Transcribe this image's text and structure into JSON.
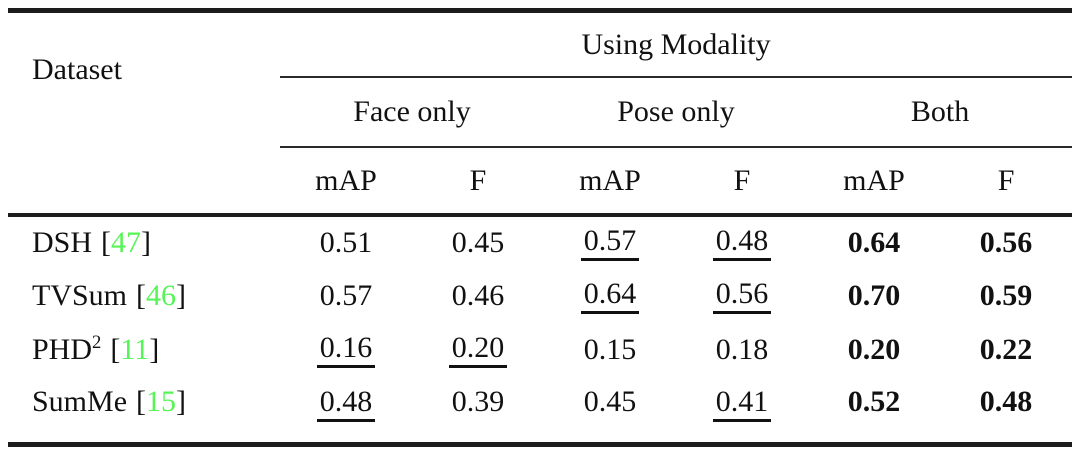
{
  "table": {
    "corner_header": "Dataset",
    "span_header": "Using Modality",
    "group_headers": [
      "Face only",
      "Pose only",
      "Both"
    ],
    "metric_headers": [
      "mAP",
      "F",
      "mAP",
      "F",
      "mAP",
      "F"
    ],
    "cite_open": "[",
    "cite_close": "]",
    "citation_color": "#57f457",
    "text_color": "#111111",
    "rows": [
      {
        "name": "DSH",
        "sup": "",
        "cite": "47",
        "values": [
          {
            "v": "0.51"
          },
          {
            "v": "0.45"
          },
          {
            "v": "0.57",
            "u": true
          },
          {
            "v": "0.48",
            "u": true
          },
          {
            "v": "0.64",
            "b": true
          },
          {
            "v": "0.56",
            "b": true
          }
        ]
      },
      {
        "name": "TVSum",
        "sup": "",
        "cite": "46",
        "values": [
          {
            "v": "0.57"
          },
          {
            "v": "0.46"
          },
          {
            "v": "0.64",
            "u": true
          },
          {
            "v": "0.56",
            "u": true
          },
          {
            "v": "0.70",
            "b": true
          },
          {
            "v": "0.59",
            "b": true
          }
        ]
      },
      {
        "name": "PHD",
        "sup": "2",
        "cite": "11",
        "values": [
          {
            "v": "0.16",
            "u": true
          },
          {
            "v": "0.20",
            "u": true
          },
          {
            "v": "0.15"
          },
          {
            "v": "0.18"
          },
          {
            "v": "0.20",
            "b": true
          },
          {
            "v": "0.22",
            "b": true
          }
        ]
      },
      {
        "name": "SumMe",
        "sup": "",
        "cite": "15",
        "values": [
          {
            "v": "0.48",
            "u": true
          },
          {
            "v": "0.39"
          },
          {
            "v": "0.45"
          },
          {
            "v": "0.41",
            "u": true
          },
          {
            "v": "0.52",
            "b": true
          },
          {
            "v": "0.48",
            "b": true
          }
        ]
      }
    ]
  }
}
